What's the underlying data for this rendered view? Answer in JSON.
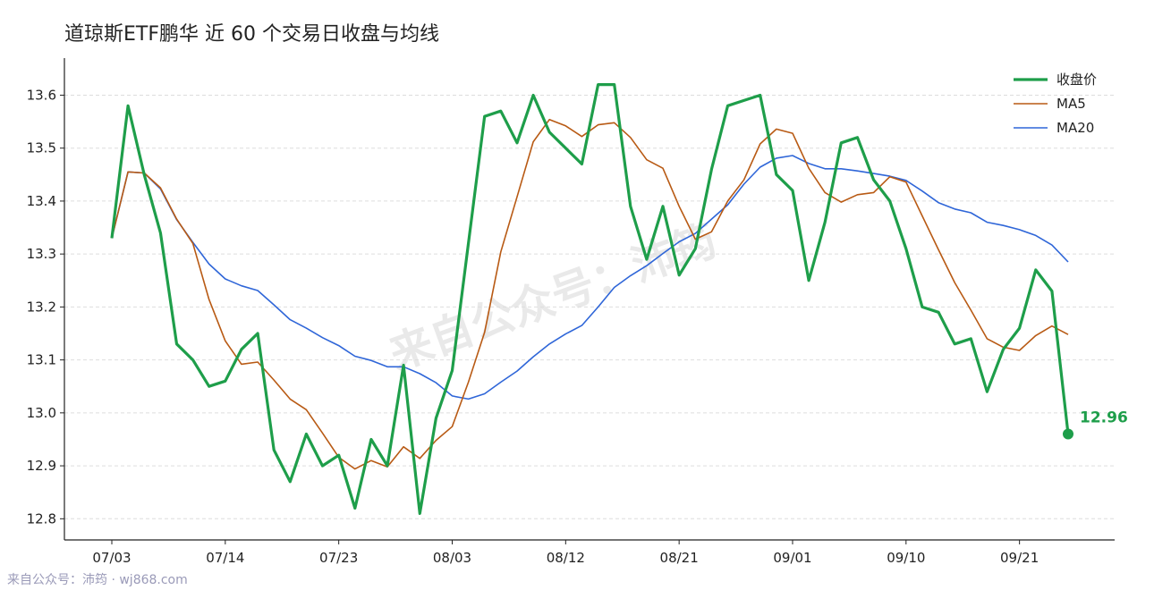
{
  "chart_data": {
    "type": "line",
    "title": "道琼斯ETF鹏华 近 60 个交易日收盘与均线",
    "xlabel": "",
    "ylabel": "",
    "ylim": [
      12.76,
      13.67
    ],
    "yticks": [
      "12.8",
      "12.9",
      "13.0",
      "13.1",
      "13.2",
      "13.3",
      "13.4",
      "13.5",
      "13.6"
    ],
    "x_tick_labels": [
      "07/03",
      "07/14",
      "07/23",
      "08/03",
      "08/12",
      "08/21",
      "09/01",
      "09/10",
      "09/21"
    ],
    "x_tick_index": [
      0,
      7,
      14,
      21,
      28,
      35,
      42,
      49,
      56
    ],
    "x_count": 60,
    "grid": "horizontal dashed",
    "legend_position": "top-right",
    "end_label": "12.96",
    "series": [
      {
        "name": "收盘价",
        "color": "#1e9e4a",
        "values": [
          13.33,
          13.58,
          13.45,
          13.34,
          13.13,
          13.1,
          13.05,
          13.06,
          13.12,
          13.15,
          12.93,
          12.87,
          12.96,
          12.9,
          12.92,
          12.82,
          12.95,
          12.9,
          13.09,
          12.81,
          12.99,
          13.08,
          13.32,
          13.56,
          13.57,
          13.51,
          13.6,
          13.53,
          13.5,
          13.47,
          13.62,
          13.62,
          13.39,
          13.29,
          13.39,
          13.26,
          13.31,
          13.46,
          13.58,
          13.59,
          13.6,
          13.45,
          13.42,
          13.25,
          13.36,
          13.51,
          13.52,
          13.44,
          13.4,
          13.31,
          13.2,
          13.19,
          13.13,
          13.14,
          13.04,
          13.12,
          13.16,
          13.27,
          13.23,
          12.96
        ]
      },
      {
        "name": "MA5",
        "color": "#b85a14",
        "values": [
          13.33,
          13.455,
          13.453,
          13.425,
          13.366,
          13.32,
          13.214,
          13.136,
          13.092,
          13.096,
          13.062,
          13.026,
          13.006,
          12.962,
          12.916,
          12.894,
          12.91,
          12.898,
          12.936,
          12.914,
          12.948,
          12.974,
          13.058,
          13.152,
          13.304,
          13.408,
          13.512,
          13.554,
          13.542,
          13.522,
          13.544,
          13.548,
          13.52,
          13.478,
          13.462,
          13.39,
          13.328,
          13.342,
          13.4,
          13.44,
          13.508,
          13.536,
          13.528,
          13.462,
          13.416,
          13.398,
          13.412,
          13.416,
          13.446,
          13.436,
          13.372,
          13.308,
          13.246,
          13.194,
          13.14,
          13.124,
          13.118,
          13.146,
          13.164,
          13.148
        ]
      },
      {
        "name": "MA20",
        "color": "#2f66d8",
        "values": [
          13.33,
          13.455,
          13.453,
          13.423,
          13.365,
          13.322,
          13.281,
          13.253,
          13.24,
          13.231,
          13.204,
          13.176,
          13.16,
          13.142,
          13.127,
          13.107,
          13.099,
          13.087,
          13.087,
          13.074,
          13.057,
          13.032,
          13.026,
          13.036,
          13.058,
          13.079,
          13.106,
          13.13,
          13.149,
          13.165,
          13.2,
          13.237,
          13.259,
          13.278,
          13.301,
          13.323,
          13.339,
          13.366,
          13.393,
          13.432,
          13.464,
          13.481,
          13.486,
          13.471,
          13.461,
          13.461,
          13.457,
          13.452,
          13.447,
          13.439,
          13.419,
          13.397,
          13.385,
          13.378,
          13.36,
          13.354,
          13.346,
          13.335,
          13.317,
          13.285
        ]
      }
    ]
  },
  "watermark": "来自公众号：沛筠",
  "footer": "来自公众号：沛筠 · wj868.com"
}
